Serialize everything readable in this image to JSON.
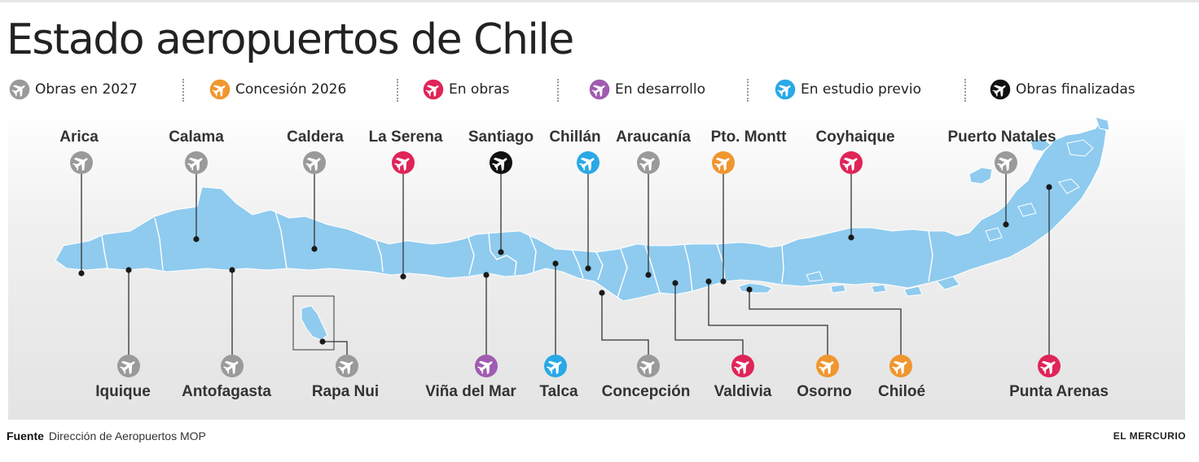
{
  "title": "Estado aeropuertos de Chile",
  "legend": [
    {
      "label": "Obras en 2027",
      "color": "#9a9a9a",
      "icon": "plane-icon"
    },
    {
      "label": "Concesión 2026",
      "color": "#f0962f",
      "icon": "plane-icon"
    },
    {
      "label": "En obras",
      "color": "#e02457",
      "icon": "plane-icon"
    },
    {
      "label": "En desarrollo",
      "color": "#a05cb0",
      "icon": "plane-icon"
    },
    {
      "label": "En estudio previo",
      "color": "#29a9e6",
      "icon": "plane-icon"
    },
    {
      "label": "Obras finalizadas",
      "color": "#111111",
      "icon": "plane-icon"
    }
  ],
  "airports": [
    {
      "name": "Arica",
      "status": "Obras en 2027"
    },
    {
      "name": "Calama",
      "status": "Obras en 2027"
    },
    {
      "name": "Caldera",
      "status": "Obras en 2027"
    },
    {
      "name": "La Serena",
      "status": "En obras"
    },
    {
      "name": "Santiago",
      "status": "Obras finalizadas"
    },
    {
      "name": "Chillán",
      "status": "En estudio previo"
    },
    {
      "name": "Araucanía",
      "status": "Obras en 2027"
    },
    {
      "name": "Pto. Montt",
      "status": "Concesión 2026"
    },
    {
      "name": "Coyhaique",
      "status": "En obras"
    },
    {
      "name": "Puerto Natales",
      "status": "Obras en 2027"
    },
    {
      "name": "Iquique",
      "status": "Obras en 2027"
    },
    {
      "name": "Antofagasta",
      "status": "Obras en 2027"
    },
    {
      "name": "Rapa Nui",
      "status": "Obras en 2027"
    },
    {
      "name": "Viña del Mar",
      "status": "En desarrollo"
    },
    {
      "name": "Talca",
      "status": "En estudio previo"
    },
    {
      "name": "Concepción",
      "status": "Obras en 2027"
    },
    {
      "name": "Valdivia",
      "status": "En obras"
    },
    {
      "name": "Osorno",
      "status": "Concesión 2026"
    },
    {
      "name": "Chiloé",
      "status": "Concesión 2026"
    },
    {
      "name": "Punta Arenas",
      "status": "En obras"
    }
  ],
  "map_colors": {
    "land": "#8fcbef",
    "border": "#ffffff",
    "leader": "#333333"
  },
  "footer": {
    "source_label": "Fuente",
    "source": "Dirección de Aeropuertos MOP",
    "brand": "EL MERCURIO"
  }
}
